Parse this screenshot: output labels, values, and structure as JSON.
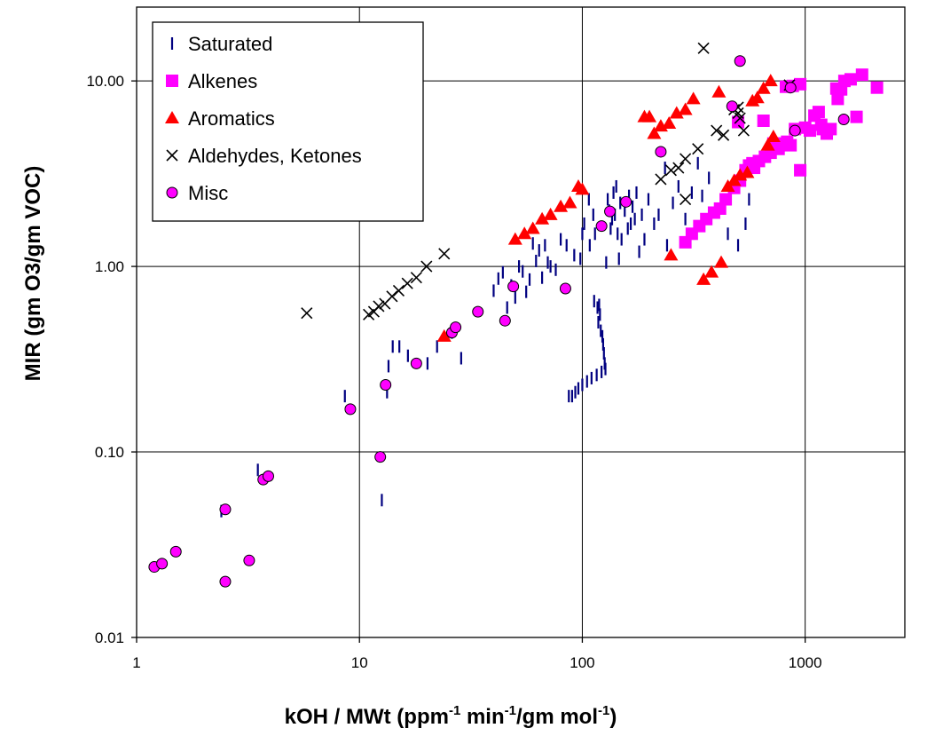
{
  "chart_data": {
    "type": "scatter",
    "x_scale": "log",
    "y_scale": "log",
    "xlim": [
      1,
      2800
    ],
    "ylim": [
      0.01,
      25
    ],
    "x_ticks": [
      1,
      10,
      100,
      1000
    ],
    "x_tick_labels": [
      "1",
      "10",
      "100",
      "1000"
    ],
    "y_ticks": [
      0.01,
      0.1,
      1,
      10
    ],
    "y_tick_labels": [
      "0.01",
      "0.10",
      "1.00",
      "10.00"
    ],
    "xlabel": "kOH / MWt (ppm-1 min-1/gm mol-1)",
    "xlabel_parts": [
      "kOH / MWt (ppm",
      "-1",
      " min",
      "-1",
      "/gm mol",
      "-1",
      ")"
    ],
    "ylabel": "MIR (gm O3/gm VOC)",
    "grid": true,
    "legend_position": "top-left",
    "series": [
      {
        "name": "Saturated",
        "marker": "vertical-dash",
        "color": "#000080",
        "points": [
          [
            2.4,
            0.048
          ],
          [
            3.5,
            0.08
          ],
          [
            8.6,
            0.2
          ],
          [
            12.6,
            0.055
          ],
          [
            13.3,
            0.21
          ],
          [
            13.5,
            0.29
          ],
          [
            14.1,
            0.37
          ],
          [
            15.1,
            0.37
          ],
          [
            16.5,
            0.33
          ],
          [
            20.2,
            0.3
          ],
          [
            22.3,
            0.37
          ],
          [
            26,
            0.44
          ],
          [
            28.6,
            0.32
          ],
          [
            40,
            0.74
          ],
          [
            42,
            0.86
          ],
          [
            44,
            0.93
          ],
          [
            46,
            0.6
          ],
          [
            48,
            0.79
          ],
          [
            50,
            0.68
          ],
          [
            52,
            1.0
          ],
          [
            54,
            0.94
          ],
          [
            56,
            0.73
          ],
          [
            58,
            0.85
          ],
          [
            60,
            1.33
          ],
          [
            62,
            1.07
          ],
          [
            64,
            1.22
          ],
          [
            66,
            0.87
          ],
          [
            68,
            1.3
          ],
          [
            70,
            1.05
          ],
          [
            72,
            1.0
          ],
          [
            76,
            0.96
          ],
          [
            80,
            1.4
          ],
          [
            85,
            1.3
          ],
          [
            87,
            0.2
          ],
          [
            90,
            0.2
          ],
          [
            92,
            1.15
          ],
          [
            93,
            0.21
          ],
          [
            96,
            0.22
          ],
          [
            98,
            1.1
          ],
          [
            100,
            0.23
          ],
          [
            100,
            1.5
          ],
          [
            102,
            1.7
          ],
          [
            105,
            0.24
          ],
          [
            107,
            2.3
          ],
          [
            108,
            1.3
          ],
          [
            110,
            0.25
          ],
          [
            112,
            1.9
          ],
          [
            113,
            0.65
          ],
          [
            114,
            1.5
          ],
          [
            116,
            0.26
          ],
          [
            117,
            0.6
          ],
          [
            118,
            0.5
          ],
          [
            119,
            0.62
          ],
          [
            120,
            0.55
          ],
          [
            121,
            0.45
          ],
          [
            122,
            0.27
          ],
          [
            123,
            0.42
          ],
          [
            124,
            0.38
          ],
          [
            125,
            0.34
          ],
          [
            126,
            0.3
          ],
          [
            127,
            0.28
          ],
          [
            128,
            1.05
          ],
          [
            130,
            2.3
          ],
          [
            132,
            2.0
          ],
          [
            134,
            1.6
          ],
          [
            136,
            1.8
          ],
          [
            138,
            2.5
          ],
          [
            140,
            1.9
          ],
          [
            142,
            2.7
          ],
          [
            144,
            1.5
          ],
          [
            146,
            1.1
          ],
          [
            148,
            2.2
          ],
          [
            150,
            1.4
          ],
          [
            155,
            2.0
          ],
          [
            160,
            1.6
          ],
          [
            162,
            2.4
          ],
          [
            165,
            1.7
          ],
          [
            168,
            2.1
          ],
          [
            172,
            1.8
          ],
          [
            175,
            2.5
          ],
          [
            180,
            1.2
          ],
          [
            185,
            1.9
          ],
          [
            190,
            1.4
          ],
          [
            198,
            2.3
          ],
          [
            210,
            1.7
          ],
          [
            220,
            1.9
          ],
          [
            235,
            3.4
          ],
          [
            240,
            1.3
          ],
          [
            255,
            2.2
          ],
          [
            270,
            2.7
          ],
          [
            290,
            1.8
          ],
          [
            310,
            2.5
          ],
          [
            330,
            3.6
          ],
          [
            345,
            2.4
          ],
          [
            370,
            3.0
          ],
          [
            400,
            2.0
          ],
          [
            450,
            1.5
          ],
          [
            500,
            1.3
          ],
          [
            540,
            1.7
          ],
          [
            560,
            2.3
          ]
        ]
      },
      {
        "name": "Alkenes",
        "marker": "square",
        "color": "#ff00ff",
        "points": [
          [
            290,
            1.35
          ],
          [
            310,
            1.5
          ],
          [
            335,
            1.65
          ],
          [
            360,
            1.8
          ],
          [
            390,
            1.95
          ],
          [
            415,
            2.05
          ],
          [
            440,
            2.3
          ],
          [
            480,
            2.65
          ],
          [
            510,
            2.9
          ],
          [
            540,
            3.3
          ],
          [
            560,
            3.5
          ],
          [
            590,
            3.4
          ],
          [
            620,
            3.7
          ],
          [
            660,
            3.9
          ],
          [
            700,
            4.1
          ],
          [
            760,
            4.3
          ],
          [
            800,
            4.6
          ],
          [
            830,
            4.7
          ],
          [
            860,
            4.5
          ],
          [
            900,
            5.5
          ],
          [
            950,
            3.3
          ],
          [
            1000,
            5.6
          ],
          [
            1100,
            6.5
          ],
          [
            1150,
            6.8
          ],
          [
            1180,
            5.8
          ],
          [
            1250,
            5.2
          ],
          [
            1300,
            5.5
          ],
          [
            1400,
            8.0
          ],
          [
            1450,
            9.0
          ],
          [
            1500,
            10.0
          ],
          [
            1600,
            10.2
          ],
          [
            1700,
            6.4
          ],
          [
            1800,
            10.8
          ],
          [
            2100,
            9.2
          ],
          [
            500,
            6.0
          ],
          [
            650,
            6.1
          ],
          [
            820,
            9.3
          ],
          [
            880,
            9.4
          ],
          [
            950,
            9.6
          ],
          [
            1050,
            5.4
          ],
          [
            1200,
            5.5
          ],
          [
            1380,
            9.1
          ],
          [
            580,
            3.6
          ],
          [
            720,
            4.6
          ]
        ]
      },
      {
        "name": "Aromatics",
        "marker": "triangle",
        "color": "#ff0000",
        "points": [
          [
            24,
            0.42
          ],
          [
            50,
            1.4
          ],
          [
            55,
            1.5
          ],
          [
            60,
            1.6
          ],
          [
            66,
            1.8
          ],
          [
            72,
            1.9
          ],
          [
            80,
            2.1
          ],
          [
            88,
            2.2
          ],
          [
            96,
            2.7
          ],
          [
            100,
            2.6
          ],
          [
            190,
            6.4
          ],
          [
            200,
            6.4
          ],
          [
            210,
            5.2
          ],
          [
            225,
            5.7
          ],
          [
            245,
            5.9
          ],
          [
            265,
            6.7
          ],
          [
            290,
            7.0
          ],
          [
            315,
            8.0
          ],
          [
            350,
            0.85
          ],
          [
            380,
            0.93
          ],
          [
            410,
            8.7
          ],
          [
            420,
            1.05
          ],
          [
            450,
            2.7
          ],
          [
            480,
            2.9
          ],
          [
            510,
            3.1
          ],
          [
            550,
            3.2
          ],
          [
            580,
            7.8
          ],
          [
            610,
            8.1
          ],
          [
            650,
            9.1
          ],
          [
            680,
            4.5
          ],
          [
            700,
            10.0
          ],
          [
            720,
            5.0
          ],
          [
            250,
            1.15
          ]
        ]
      },
      {
        "name": "Aldehydes, Ketones",
        "marker": "x",
        "color": "#000000",
        "points": [
          [
            5.8,
            0.56
          ],
          [
            11,
            0.55
          ],
          [
            11.6,
            0.57
          ],
          [
            12.2,
            0.61
          ],
          [
            13,
            0.63
          ],
          [
            14,
            0.69
          ],
          [
            15,
            0.74
          ],
          [
            16.4,
            0.81
          ],
          [
            18,
            0.87
          ],
          [
            20,
            1.0
          ],
          [
            24,
            1.17
          ],
          [
            225,
            2.95
          ],
          [
            250,
            3.3
          ],
          [
            270,
            3.4
          ],
          [
            290,
            3.8
          ],
          [
            290,
            2.3
          ],
          [
            330,
            4.3
          ],
          [
            350,
            15.0
          ],
          [
            400,
            5.4
          ],
          [
            430,
            5.1
          ],
          [
            480,
            7.0
          ],
          [
            500,
            6.7
          ],
          [
            510,
            6.3
          ],
          [
            530,
            5.4
          ],
          [
            500,
            7.2
          ],
          [
            850,
            9.5
          ]
        ]
      },
      {
        "name": "Misc",
        "marker": "circle",
        "color": "#ff00ff",
        "points": [
          [
            1.2,
            0.024
          ],
          [
            1.3,
            0.025
          ],
          [
            1.5,
            0.029
          ],
          [
            2.5,
            0.049
          ],
          [
            2.5,
            0.02
          ],
          [
            3.2,
            0.026
          ],
          [
            3.7,
            0.071
          ],
          [
            3.9,
            0.074
          ],
          [
            9.1,
            0.17
          ],
          [
            12.4,
            0.094
          ],
          [
            13.1,
            0.23
          ],
          [
            18,
            0.3
          ],
          [
            26,
            0.44
          ],
          [
            27,
            0.47
          ],
          [
            34,
            0.57
          ],
          [
            45,
            0.51
          ],
          [
            49,
            0.78
          ],
          [
            84,
            0.76
          ],
          [
            122,
            1.65
          ],
          [
            133,
            1.98
          ],
          [
            157,
            2.23
          ],
          [
            225,
            4.15
          ],
          [
            470,
            7.3
          ],
          [
            510,
            12.8
          ],
          [
            860,
            9.2
          ],
          [
            900,
            5.4
          ],
          [
            1490,
            6.2
          ]
        ]
      }
    ]
  }
}
